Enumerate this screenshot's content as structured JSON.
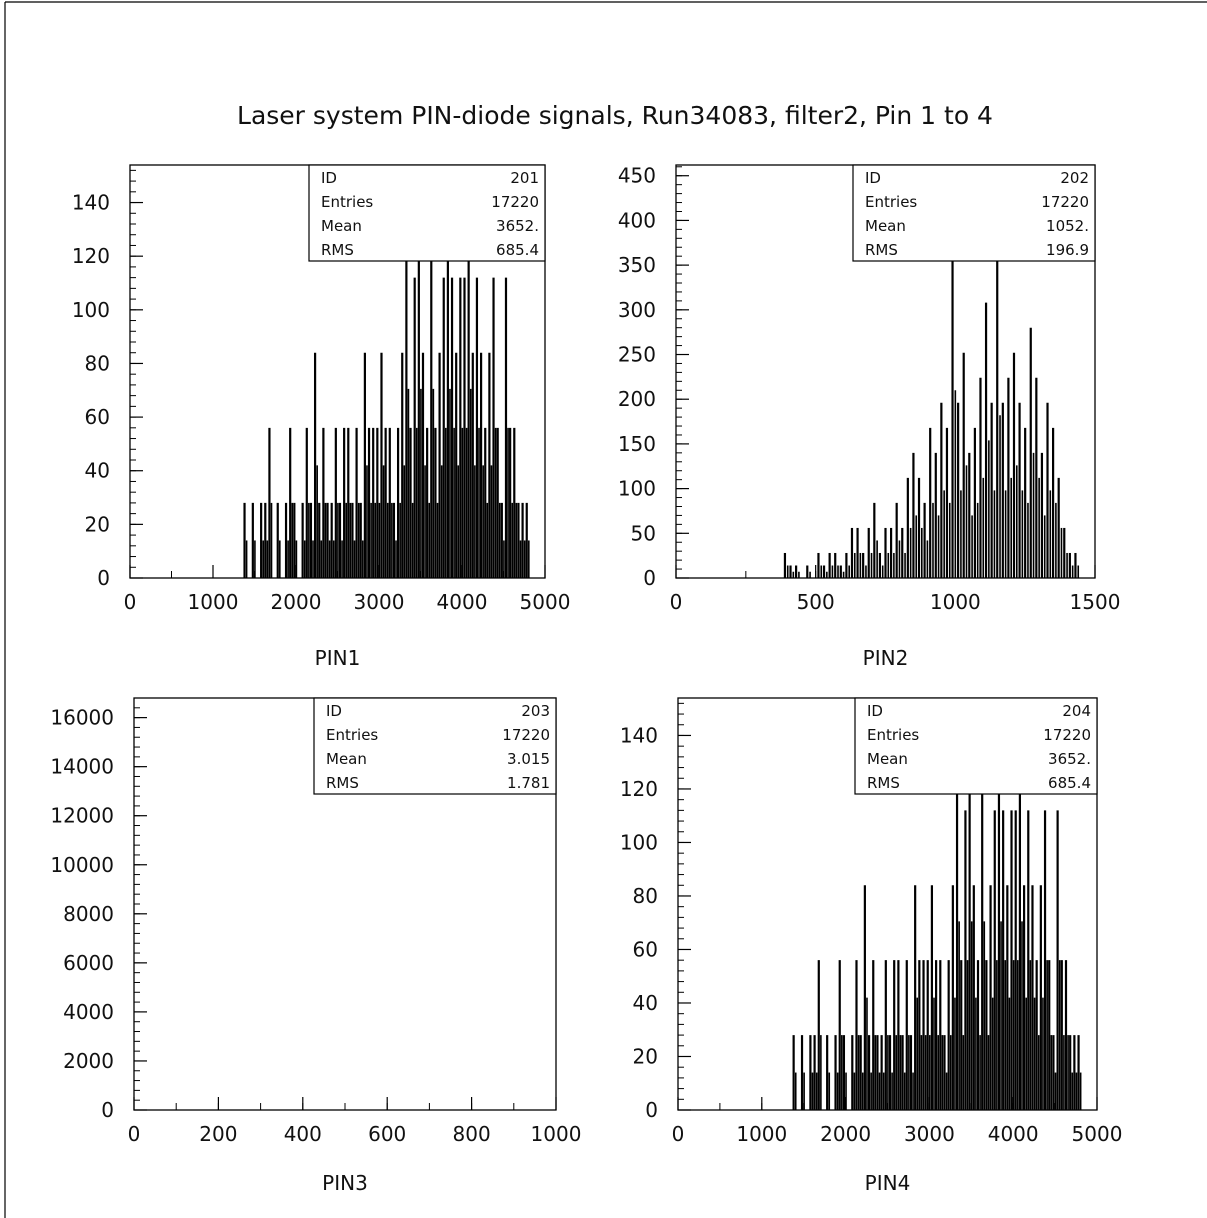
{
  "title": "Laser system PIN-diode signals, Run34083, filter2, Pin 1 to 4",
  "colors": {
    "ink": "#000000",
    "background": "#ffffff"
  },
  "stat_labels": [
    "ID",
    "Entries",
    "Mean",
    "RMS"
  ],
  "chart_data": [
    {
      "type": "bar",
      "xlabel": "PIN1",
      "ylabel": "",
      "xlim": [
        0,
        5000
      ],
      "ylim": [
        0,
        154
      ],
      "x_ticks": [
        "0",
        "1000",
        "2000",
        "3000",
        "4000",
        "5000"
      ],
      "y_ticks": [
        "0",
        "20",
        "40",
        "60",
        "80",
        "100",
        "120",
        "140"
      ],
      "stats": {
        "ID": "201",
        "Entries": "17220",
        "Mean": "3652.",
        "RMS": "685.4"
      },
      "x": [
        1380,
        1430,
        1480,
        1530,
        1580,
        1630,
        1680,
        1730,
        1780,
        1830,
        1880,
        1930,
        1980,
        2030,
        2080,
        2130,
        2180,
        2230,
        2280,
        2330,
        2380,
        2430,
        2480,
        2530,
        2580,
        2630,
        2680,
        2730,
        2780,
        2830,
        2880,
        2930,
        2980,
        3030,
        3080,
        3130,
        3180,
        3230,
        3280,
        3330,
        3380,
        3430,
        3480,
        3530,
        3580,
        3630,
        3680,
        3730,
        3780,
        3830,
        3880,
        3930,
        3980,
        4030,
        4080,
        4130,
        4180,
        4230,
        4280,
        4330,
        4380,
        4430,
        4480,
        4530,
        4580,
        4630,
        4680,
        4730,
        4780
      ],
      "values": [
        28,
        0,
        28,
        0,
        28,
        28,
        56,
        0,
        28,
        0,
        28,
        56,
        28,
        0,
        28,
        56,
        28,
        84,
        28,
        56,
        28,
        28,
        56,
        28,
        56,
        56,
        28,
        56,
        28,
        84,
        56,
        56,
        56,
        84,
        56,
        56,
        28,
        56,
        84,
        141,
        56,
        112,
        141,
        84,
        56,
        141,
        56,
        84,
        112,
        141,
        112,
        84,
        112,
        112,
        141,
        84,
        112,
        84,
        56,
        84,
        112,
        56,
        28,
        112,
        56,
        56,
        28,
        28,
        28
      ]
    },
    {
      "type": "bar",
      "xlabel": "PIN2",
      "ylabel": "",
      "xlim": [
        0,
        1500
      ],
      "ylim": [
        0,
        462
      ],
      "x_ticks": [
        "0",
        "500",
        "1000",
        "1500"
      ],
      "y_ticks": [
        "0",
        "50",
        "100",
        "150",
        "200",
        "250",
        "300",
        "350",
        "400",
        "450"
      ],
      "stats": {
        "ID": "202",
        "Entries": "17220",
        "Mean": "1052.",
        "RMS": "196.9"
      },
      "x": [
        390,
        410,
        430,
        450,
        470,
        490,
        510,
        530,
        550,
        570,
        590,
        610,
        630,
        650,
        670,
        690,
        710,
        730,
        750,
        770,
        790,
        810,
        830,
        850,
        870,
        890,
        910,
        930,
        950,
        970,
        990,
        1010,
        1030,
        1050,
        1070,
        1090,
        1110,
        1130,
        1150,
        1170,
        1190,
        1210,
        1230,
        1250,
        1270,
        1290,
        1310,
        1330,
        1350,
        1370,
        1390,
        1410,
        1430
      ],
      "values": [
        28,
        14,
        14,
        0,
        14,
        0,
        28,
        14,
        28,
        28,
        14,
        28,
        56,
        56,
        28,
        56,
        84,
        28,
        56,
        56,
        84,
        56,
        112,
        140,
        112,
        84,
        168,
        140,
        196,
        168,
        420,
        196,
        252,
        140,
        168,
        224,
        308,
        196,
        364,
        196,
        224,
        252,
        196,
        168,
        280,
        224,
        140,
        196,
        168,
        112,
        56,
        28,
        28
      ]
    },
    {
      "type": "bar",
      "xlabel": "PIN3",
      "ylabel": "",
      "xlim": [
        0,
        1000
      ],
      "ylim": [
        0,
        16800
      ],
      "x_ticks": [
        "0",
        "200",
        "400",
        "600",
        "800",
        "1000"
      ],
      "y_ticks": [
        "0",
        "2000",
        "4000",
        "6000",
        "8000",
        "10000",
        "12000",
        "14000",
        "16000"
      ],
      "stats": {
        "ID": "203",
        "Entries": "17220",
        "Mean": "3.015",
        "RMS": "1.781"
      },
      "x": [],
      "values": []
    },
    {
      "type": "bar",
      "xlabel": "PIN4",
      "ylabel": "",
      "xlim": [
        0,
        5000
      ],
      "ylim": [
        0,
        154
      ],
      "x_ticks": [
        "0",
        "1000",
        "2000",
        "3000",
        "4000",
        "5000"
      ],
      "y_ticks": [
        "0",
        "20",
        "40",
        "60",
        "80",
        "100",
        "120",
        "140"
      ],
      "stats": {
        "ID": "204",
        "Entries": "17220",
        "Mean": "3652.",
        "RMS": "685.4"
      },
      "x": [
        1380,
        1430,
        1480,
        1530,
        1580,
        1630,
        1680,
        1730,
        1780,
        1830,
        1880,
        1930,
        1980,
        2030,
        2080,
        2130,
        2180,
        2230,
        2280,
        2330,
        2380,
        2430,
        2480,
        2530,
        2580,
        2630,
        2680,
        2730,
        2780,
        2830,
        2880,
        2930,
        2980,
        3030,
        3080,
        3130,
        3180,
        3230,
        3280,
        3330,
        3380,
        3430,
        3480,
        3530,
        3580,
        3630,
        3680,
        3730,
        3780,
        3830,
        3880,
        3930,
        3980,
        4030,
        4080,
        4130,
        4180,
        4230,
        4280,
        4330,
        4380,
        4430,
        4480,
        4530,
        4580,
        4630,
        4680,
        4730,
        4780
      ],
      "values": [
        28,
        0,
        28,
        0,
        28,
        28,
        56,
        0,
        28,
        0,
        28,
        56,
        28,
        0,
        28,
        56,
        28,
        84,
        28,
        56,
        28,
        28,
        56,
        28,
        56,
        56,
        28,
        56,
        28,
        84,
        56,
        56,
        56,
        84,
        56,
        56,
        28,
        56,
        84,
        141,
        56,
        112,
        141,
        84,
        56,
        141,
        56,
        84,
        112,
        141,
        112,
        84,
        112,
        112,
        141,
        84,
        112,
        84,
        56,
        84,
        112,
        56,
        28,
        112,
        56,
        56,
        28,
        28,
        28
      ]
    }
  ]
}
